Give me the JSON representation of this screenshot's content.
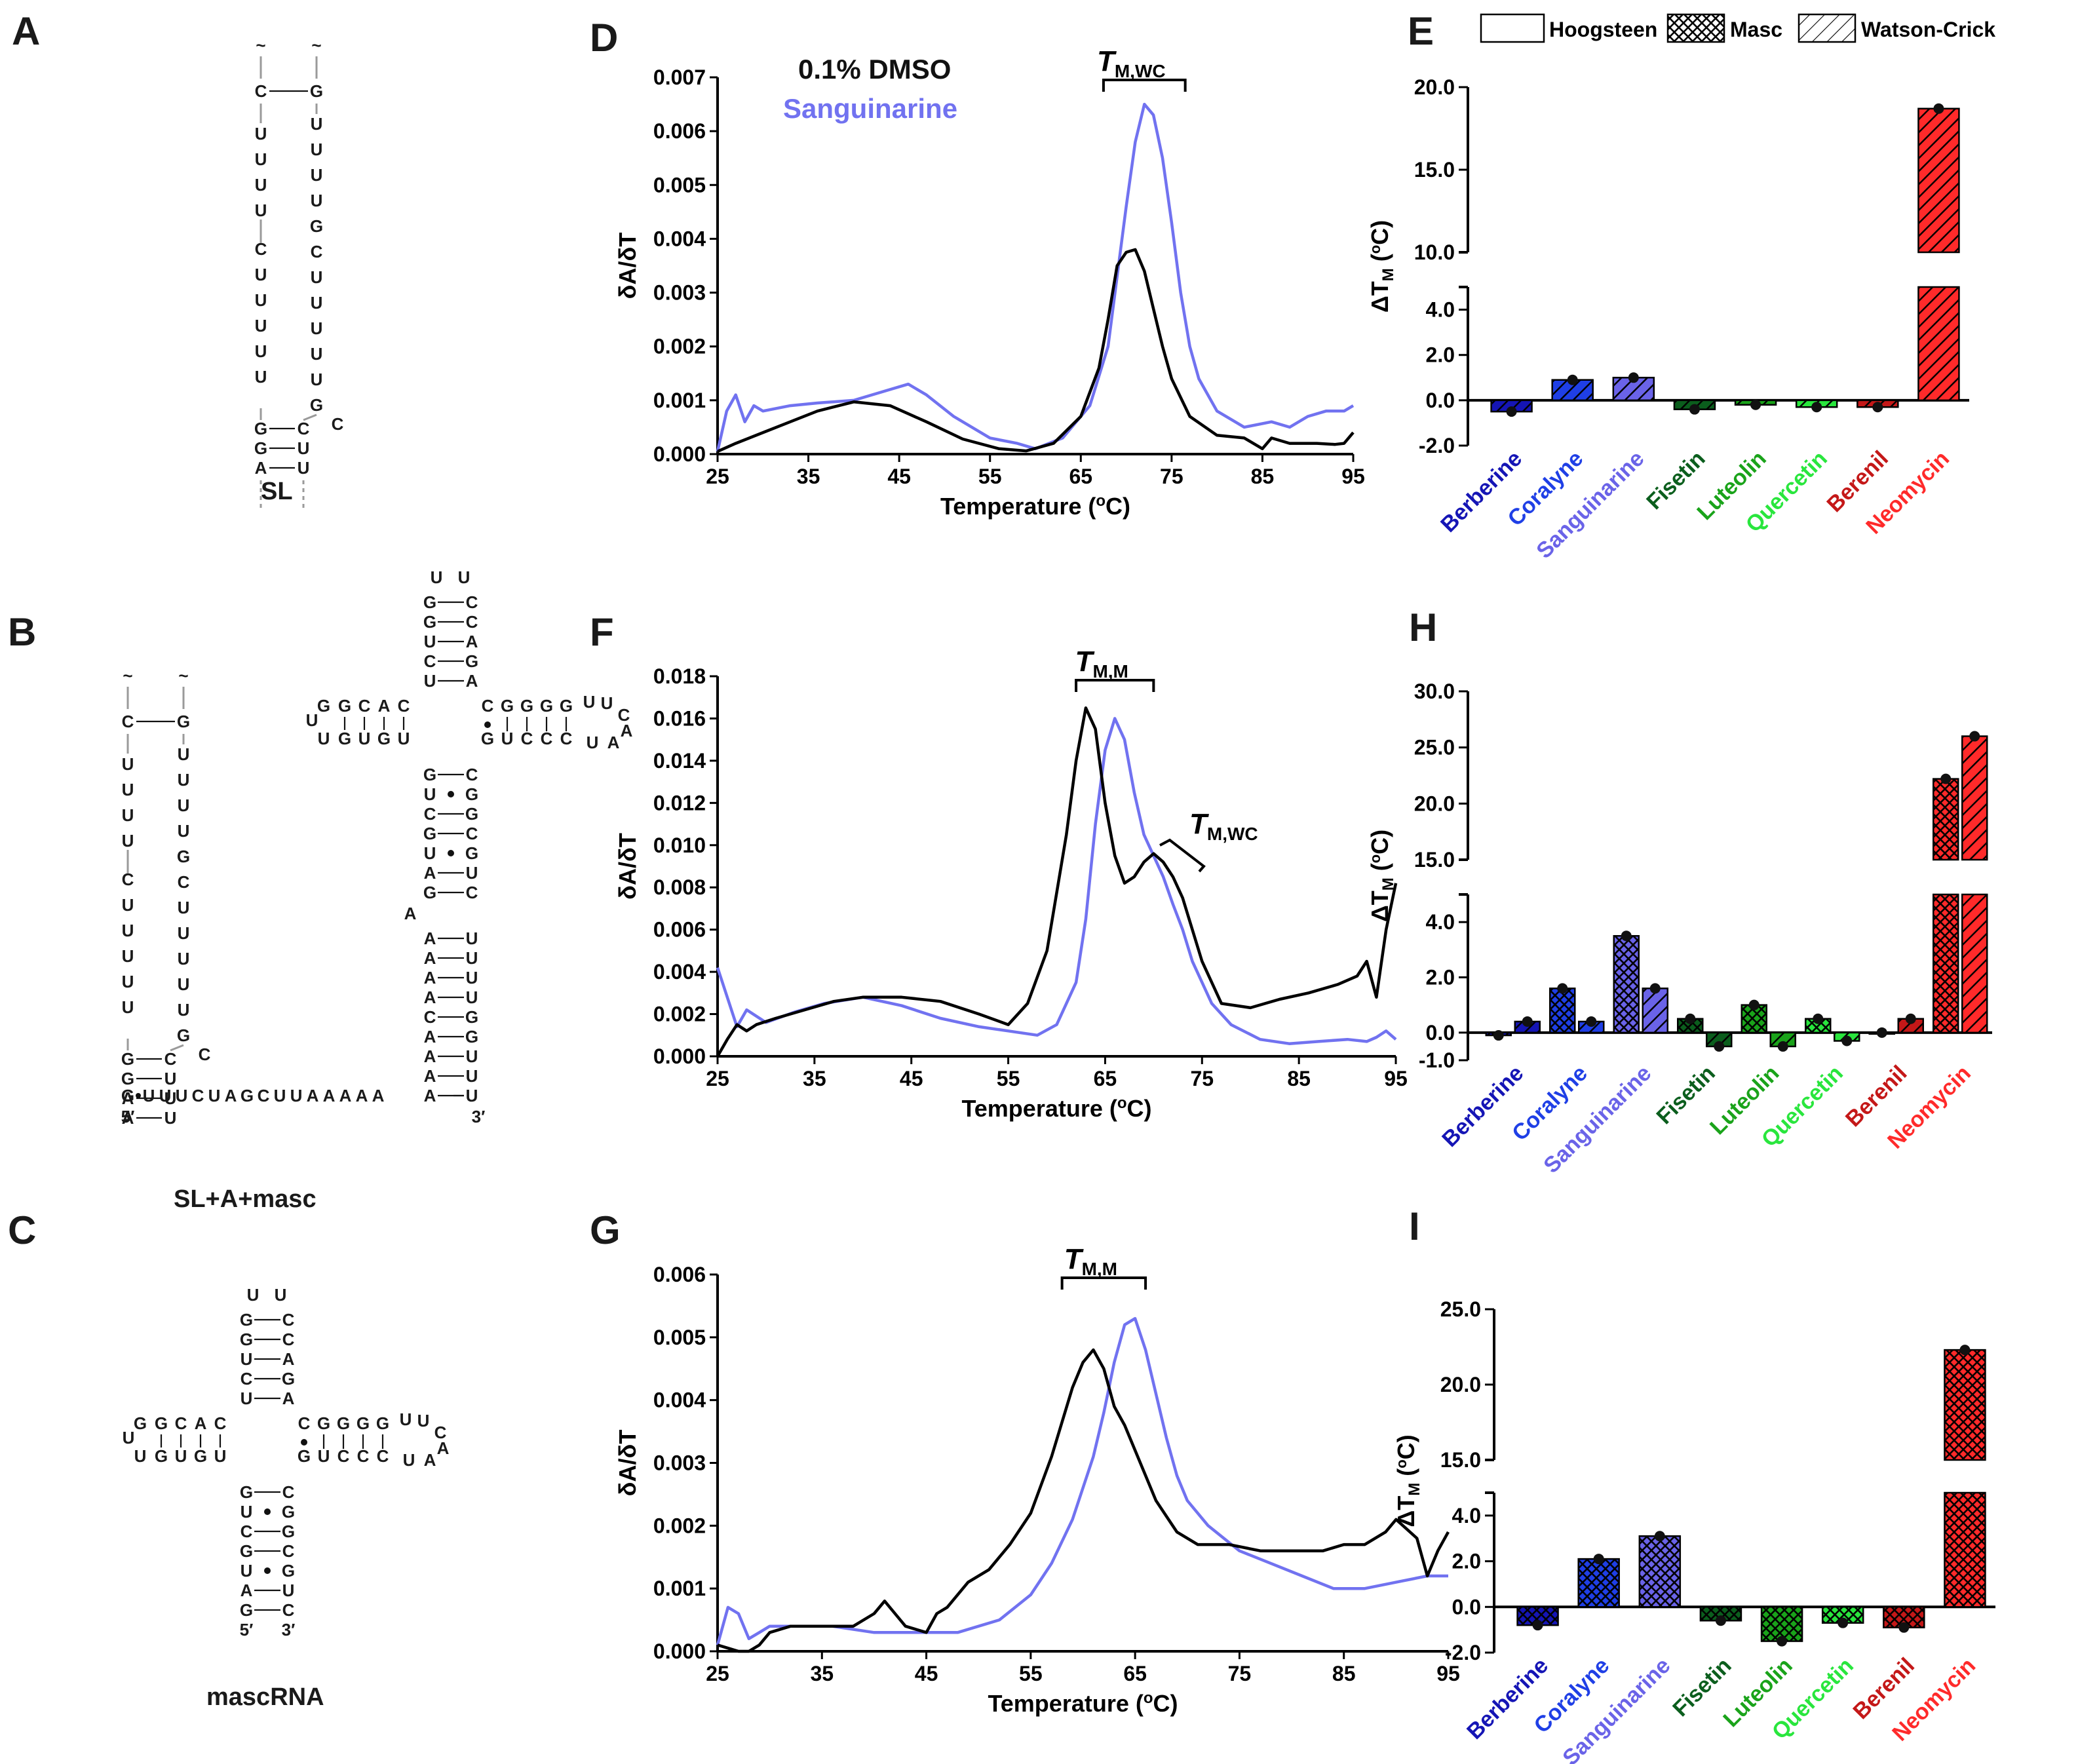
{
  "panel_letters": {
    "A": "A",
    "B": "B",
    "C": "C",
    "D": "D",
    "E": "E",
    "F": "F",
    "G": "G",
    "H": "H",
    "I": "I"
  },
  "structures": {
    "sl_name": "SL",
    "slam_name": "SL+A+masc",
    "masc_name": "mascRNA",
    "tilde": "~",
    "five_prime": "5′",
    "three_prime": "3′",
    "sl_left": [
      "C",
      "U",
      "U",
      "U",
      "U",
      "C",
      "U",
      "U",
      "U",
      "U",
      "U",
      "G",
      "G",
      "A"
    ],
    "sl_right": [
      "G",
      "U",
      "U",
      "U",
      "U",
      "G",
      "C",
      "U",
      "U",
      "U",
      "U",
      "U",
      "G",
      "C",
      "C",
      "U"
    ],
    "linker": "UUUCUAGCUUAAAAA",
    "linker_g": "G",
    "a_left": [
      "A",
      "A",
      "A",
      "A",
      "C",
      "A",
      "A",
      "A",
      "A"
    ],
    "a_right": [
      "U",
      "U",
      "U",
      "U",
      "G",
      "G",
      "U",
      "U",
      "U"
    ],
    "a_bulge": "A",
    "masc_top": {
      "left": [
        "G",
        "G",
        "U",
        "C",
        "U"
      ],
      "right": [
        "C",
        "C",
        "A",
        "G",
        "A"
      ],
      "loop": [
        "U",
        "U"
      ]
    },
    "masc_bottom": {
      "left": [
        "G",
        "U",
        "C",
        "G",
        "U",
        "A",
        "G"
      ],
      "right": [
        "C",
        "G",
        "G",
        "C",
        "G",
        "U",
        "C"
      ]
    },
    "masc_left_arm": {
      "top": [
        "G",
        "C",
        "A",
        "C"
      ],
      "bottom": [
        "G",
        "U",
        "G",
        "U"
      ],
      "loop": [
        "G",
        "U",
        "U"
      ]
    },
    "masc_right_arm": {
      "top": [
        "C",
        "G",
        "G",
        "G",
        "G"
      ],
      "bottom": [
        "G",
        "U",
        "C",
        "C",
        "C"
      ],
      "loop": [
        "U",
        "U",
        "C",
        "A",
        "A",
        "U"
      ]
    }
  },
  "legend": {
    "dmso": "0.1% DMSO",
    "sanguinarine": "Sanguinarine",
    "hoogsteen": "Hoogsteen",
    "masc": "Masc",
    "watson_crick": "Watson-Crick"
  },
  "annotations": {
    "tm_wc": {
      "t": "T",
      "sub": "M,WC"
    },
    "tm_m": {
      "t": "T",
      "sub": "M,M"
    }
  },
  "colors": {
    "dmso": "#000000",
    "sanguinarine": "#7172f0",
    "berberine": "#1515b5",
    "coralyne": "#1f3fe6",
    "sanguinarine_bar": "#6a63e8",
    "fisetin": "#0b5e1d",
    "luteolin": "#1aa31a",
    "quercetin": "#29e63d",
    "berenil": "#c41818",
    "neomycin": "#ff2a2a"
  },
  "chart_data": [
    {
      "id": "D",
      "type": "line",
      "xlabel": "Temperature (oC)",
      "ylabel": "δA/δT",
      "xlim": [
        25,
        95
      ],
      "ylim": [
        0,
        0.007
      ],
      "xticks": [
        "25",
        "35",
        "45",
        "55",
        "65",
        "75",
        "85",
        "95"
      ],
      "yticks": [
        "0.000",
        "0.001",
        "0.002",
        "0.003",
        "0.004",
        "0.005",
        "0.006",
        "0.007"
      ],
      "series": [
        {
          "name": "0.1% DMSO",
          "x": [
            25,
            27,
            30,
            33,
            36,
            40,
            44,
            48,
            52,
            56,
            59,
            62,
            65,
            67,
            68,
            69,
            70,
            71,
            72,
            73,
            74,
            75,
            77,
            80,
            83,
            85,
            86,
            88,
            91,
            93,
            94,
            95
          ],
          "y": [
            5e-05,
            0.0002,
            0.0004,
            0.0006,
            0.0008,
            0.00097,
            0.0009,
            0.0006,
            0.00028,
            0.0001,
            6e-05,
            0.0002,
            0.0007,
            0.0016,
            0.0025,
            0.0035,
            0.00375,
            0.0038,
            0.0034,
            0.0027,
            0.002,
            0.0014,
            0.0007,
            0.00035,
            0.0003,
            0.0001,
            0.0003,
            0.0002,
            0.0002,
            0.00018,
            0.0002,
            0.0004
          ]
        },
        {
          "name": "Sanguinarine",
          "x": [
            25,
            26,
            27,
            28,
            29,
            30,
            33,
            36,
            40,
            44,
            46,
            48,
            51,
            55,
            58,
            60,
            63,
            66,
            68,
            69,
            70,
            71,
            72,
            73,
            74,
            75,
            76,
            77,
            78,
            80,
            83,
            86,
            88,
            90,
            92,
            94,
            95
          ],
          "y": [
            5e-05,
            0.0008,
            0.0011,
            0.0006,
            0.0009,
            0.0008,
            0.0009,
            0.00095,
            0.001,
            0.0012,
            0.0013,
            0.0011,
            0.0007,
            0.0003,
            0.0002,
            0.0001,
            0.0003,
            0.0009,
            0.002,
            0.0033,
            0.0046,
            0.0058,
            0.0065,
            0.0063,
            0.0055,
            0.0043,
            0.003,
            0.002,
            0.0014,
            0.0008,
            0.0005,
            0.0006,
            0.0005,
            0.0007,
            0.0008,
            0.0008,
            0.0009
          ]
        }
      ]
    },
    {
      "id": "F",
      "type": "line",
      "xlabel": "Temperature (oC)",
      "ylabel": "δA/δT",
      "xlim": [
        25,
        95
      ],
      "ylim": [
        0,
        0.018
      ],
      "xticks": [
        "25",
        "35",
        "45",
        "55",
        "65",
        "75",
        "85",
        "95"
      ],
      "yticks": [
        "0.000",
        "0.002",
        "0.004",
        "0.006",
        "0.008",
        "0.010",
        "0.012",
        "0.014",
        "0.016",
        "0.018"
      ],
      "series": [
        {
          "name": "0.1% DMSO",
          "x": [
            25,
            26,
            27,
            28,
            29,
            31,
            34,
            37,
            40,
            44,
            48,
            52,
            55,
            57,
            59,
            61,
            62,
            63,
            64,
            65,
            66,
            67,
            68,
            69,
            70,
            71,
            72,
            73,
            74,
            75,
            76,
            77,
            80,
            83,
            86,
            89,
            91,
            92,
            93,
            94,
            95
          ],
          "y": [
            0.0,
            0.0008,
            0.0015,
            0.0012,
            0.0015,
            0.0018,
            0.0022,
            0.0026,
            0.0028,
            0.0028,
            0.0026,
            0.002,
            0.0015,
            0.0025,
            0.005,
            0.0105,
            0.014,
            0.0165,
            0.0155,
            0.012,
            0.0095,
            0.0082,
            0.0085,
            0.0092,
            0.0096,
            0.0092,
            0.0085,
            0.0075,
            0.006,
            0.0045,
            0.0035,
            0.0025,
            0.0023,
            0.0027,
            0.003,
            0.0034,
            0.0038,
            0.0045,
            0.0028,
            0.006,
            0.0082
          ]
        },
        {
          "name": "Sanguinarine",
          "x": [
            25,
            26,
            27,
            28,
            30,
            33,
            36,
            40,
            44,
            48,
            52,
            55,
            58,
            60,
            62,
            63,
            64,
            65,
            66,
            67,
            68,
            69,
            70,
            71,
            72,
            73,
            74,
            75,
            76,
            78,
            81,
            84,
            87,
            90,
            92,
            93,
            94,
            95
          ],
          "y": [
            0.0042,
            0.0028,
            0.0014,
            0.0022,
            0.0016,
            0.0021,
            0.0025,
            0.0028,
            0.0024,
            0.0018,
            0.0014,
            0.0012,
            0.001,
            0.0015,
            0.0035,
            0.0065,
            0.011,
            0.0145,
            0.016,
            0.015,
            0.0125,
            0.0105,
            0.0095,
            0.0085,
            0.0072,
            0.006,
            0.0045,
            0.0035,
            0.0025,
            0.0015,
            0.0008,
            0.0006,
            0.0007,
            0.0008,
            0.0007,
            0.0009,
            0.0012,
            0.0008
          ]
        }
      ]
    },
    {
      "id": "G",
      "type": "line",
      "xlabel": "Temperature (oC)",
      "ylabel": "δA/δT",
      "xlim": [
        25,
        95
      ],
      "ylim": [
        0,
        0.006
      ],
      "xticks": [
        "25",
        "35",
        "45",
        "55",
        "65",
        "75",
        "85",
        "95"
      ],
      "yticks": [
        "0.000",
        "0.001",
        "0.002",
        "0.003",
        "0.004",
        "0.005",
        "0.006"
      ],
      "series": [
        {
          "name": "0.1% DMSO",
          "x": [
            25,
            26,
            27,
            28,
            29,
            30,
            32,
            35,
            38,
            40,
            41,
            42,
            43,
            45,
            46,
            47,
            49,
            51,
            53,
            55,
            57,
            59,
            60,
            61,
            62,
            63,
            64,
            65,
            66,
            67,
            69,
            71,
            74,
            77,
            80,
            83,
            85,
            87,
            89,
            90,
            92,
            93,
            94,
            95
          ],
          "y": [
            0.0001,
            5e-05,
            0.0,
            0.0,
            0.0001,
            0.0003,
            0.0004,
            0.0004,
            0.0004,
            0.0006,
            0.0008,
            0.0006,
            0.0004,
            0.0003,
            0.0006,
            0.0007,
            0.0011,
            0.0013,
            0.0017,
            0.0022,
            0.0031,
            0.0042,
            0.0046,
            0.0048,
            0.0045,
            0.0039,
            0.0036,
            0.0032,
            0.0028,
            0.0024,
            0.0019,
            0.0017,
            0.0017,
            0.0016,
            0.0016,
            0.0016,
            0.0017,
            0.0017,
            0.0019,
            0.0021,
            0.0018,
            0.0012,
            0.0016,
            0.0019
          ]
        },
        {
          "name": "Sanguinarine",
          "x": [
            25,
            26,
            27,
            28,
            29,
            30,
            33,
            36,
            40,
            44,
            48,
            52,
            55,
            57,
            59,
            61,
            62,
            63,
            64,
            65,
            66,
            67,
            68,
            69,
            70,
            72,
            75,
            78,
            81,
            84,
            87,
            90,
            93,
            95
          ],
          "y": [
            0.0001,
            0.0007,
            0.0006,
            0.0002,
            0.0003,
            0.0004,
            0.0004,
            0.0004,
            0.0003,
            0.0003,
            0.0003,
            0.0005,
            0.0009,
            0.0014,
            0.0021,
            0.0031,
            0.0038,
            0.0046,
            0.0052,
            0.0053,
            0.0048,
            0.0041,
            0.0034,
            0.0028,
            0.0024,
            0.002,
            0.0016,
            0.0014,
            0.0012,
            0.001,
            0.001,
            0.0011,
            0.0012,
            0.0012
          ]
        }
      ]
    },
    {
      "id": "E",
      "type": "bar",
      "ylabel": "ΔTM (oC)",
      "axis_break": [
        5,
        10
      ],
      "ylim_low": [
        -2,
        5
      ],
      "ylim_high": [
        10,
        20
      ],
      "yticks_low": [
        "-2.0",
        "0.0",
        "2.0",
        "4.0"
      ],
      "yticks_high": [
        "10.0",
        "15.0",
        "20.0"
      ],
      "categories": [
        "Berberine",
        "Coralyne",
        "Sanguinarine",
        "Fisetin",
        "Luteolin",
        "Quercetin",
        "Berenil",
        "Neomycin"
      ],
      "series": [
        {
          "name": "Watson-Crick",
          "values": [
            -0.5,
            0.9,
            1.0,
            -0.4,
            -0.2,
            -0.3,
            -0.3,
            18.7
          ]
        }
      ]
    },
    {
      "id": "H",
      "type": "bar",
      "ylabel": "ΔTM (oC)",
      "axis_break": [
        5,
        15
      ],
      "ylim_low": [
        -1,
        5
      ],
      "ylim_high": [
        15,
        30
      ],
      "yticks_low": [
        "-1.0",
        "0.0",
        "2.0",
        "4.0"
      ],
      "yticks_high": [
        "15.0",
        "20.0",
        "25.0",
        "30.0"
      ],
      "categories": [
        "Berberine",
        "Coralyne",
        "Sanguinarine",
        "Fisetin",
        "Luteolin",
        "Quercetin",
        "Berenil",
        "Neomycin"
      ],
      "series": [
        {
          "name": "Masc",
          "values": [
            -0.1,
            1.6,
            3.5,
            0.5,
            1.0,
            0.5,
            0.0,
            22.2
          ]
        },
        {
          "name": "Watson-Crick",
          "values": [
            0.4,
            0.4,
            1.6,
            -0.5,
            -0.5,
            -0.3,
            0.5,
            26.0
          ]
        }
      ]
    },
    {
      "id": "I",
      "type": "bar",
      "ylabel": "ΔTM (oC)",
      "axis_break": [
        5,
        15
      ],
      "ylim_low": [
        -2,
        5
      ],
      "ylim_high": [
        15,
        25
      ],
      "yticks_low": [
        "-2.0",
        "0.0",
        "2.0",
        "4.0"
      ],
      "yticks_high": [
        "15.0",
        "20.0",
        "25.0"
      ],
      "categories": [
        "Berberine",
        "Coralyne",
        "Sanguinarine",
        "Fisetin",
        "Luteolin",
        "Quercetin",
        "Berenil",
        "Neomycin"
      ],
      "series": [
        {
          "name": "Masc",
          "values": [
            -0.8,
            2.1,
            3.1,
            -0.6,
            -1.5,
            -0.7,
            -0.9,
            22.3
          ]
        }
      ]
    }
  ]
}
